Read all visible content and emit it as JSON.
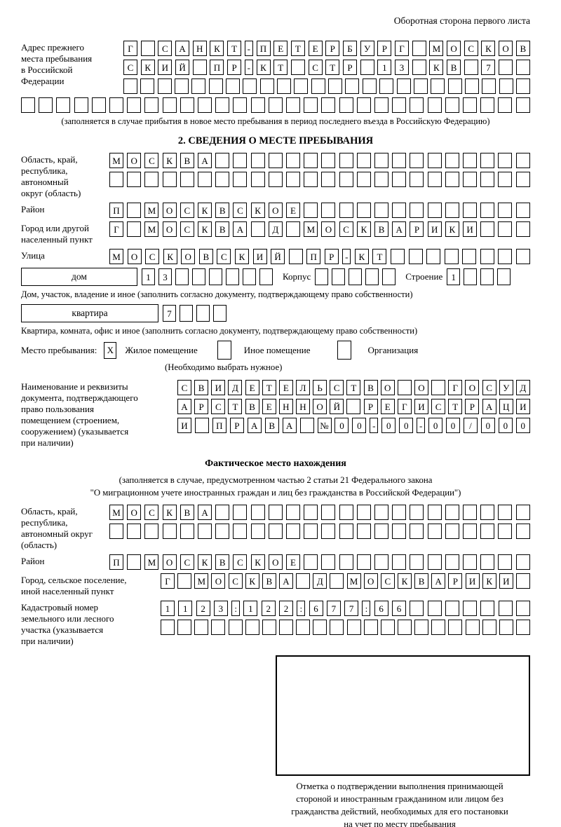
{
  "header": {
    "note": "Оборотная сторона первого листа"
  },
  "prev_address": {
    "label": "Адрес прежнего\nместа пребывания\nв Российской\nФедерации",
    "row1": "Г САНКТ-ПЕТЕРБУРГ МОСКОВ",
    "row2": "СКИЙ ПР-КТ СТР 13 КВ 7",
    "row3": "",
    "row4": "",
    "caption": "(заполняется в случае прибытия в новое место пребывания в период последнего въезда в Российскую Федерацию)"
  },
  "section2": {
    "title": "2. СВЕДЕНИЯ О МЕСТЕ ПРЕБЫВАНИЯ",
    "region_label": "Область, край,\nреспублика,\nавтономный\nокруг (область)",
    "region_row1": "МОСКВА",
    "region_row2": "",
    "district_label": "Район",
    "district_row": "П МОСКВСКОЕ",
    "city_label": "Город или другой\nнаселенный пункт",
    "city_row": "Г МОСКВА Д МОСКВАРИКИ",
    "street_label": "Улица",
    "street_row": "МОСКОВСКИЙ ПР-КТ",
    "house": {
      "type": "дом",
      "digits": "13",
      "korpus_label": "Корпус",
      "korpus_digits": "",
      "stroenie_label": "Строение",
      "stroenie_digits": "1",
      "caption": "Дом, участок, владение и иное (заполнить согласно документу, подтверждающему право собственности)"
    },
    "apartment": {
      "type": "квартира",
      "digits": "7",
      "caption": "Квартира, комната, офис и иное (заполнить согласно документу, подтверждающему право собственности)"
    },
    "stay": {
      "label": "Место пребывания:",
      "opt1_mark": "X",
      "opt1_label": "Жилое помещение",
      "opt2_mark": "",
      "opt2_label": "Иное помещение",
      "opt3_mark": "",
      "opt3_label": "Организация",
      "note": "(Необходимо выбрать нужное)"
    },
    "document": {
      "label": "Наименование и реквизиты\nдокумента, подтверждающего\nправо пользования\nпомещением (строением,\nсооружением) (указывается\nпри наличии)",
      "row1": "СВИДЕТЕЛЬСТВО О ГОСУД",
      "row2": "АРСТВЕННОЙ РЕГИСТРАЦИ",
      "row3": "И ПРАВА №00-00-00/000"
    }
  },
  "actual_location": {
    "title": "Фактическое место нахождения",
    "note1": "(заполняется в случае, предусмотренном частью 2 статьи 21 Федерального закона",
    "note2": "\"О миграционном учете иностранных граждан и лиц без гражданства в Российской Федерации\")",
    "region_label": "Область, край,\nреспублика,\nавтономный округ\n(область)",
    "region_row1": "МОСКВА",
    "region_row2": "",
    "district_label": "Район",
    "district_row": "П МОСКВСКОЕ",
    "city_label": "Город, сельское поселение,\nиной населенный пункт",
    "city_row": "Г МОСКВА Д МОСКВАРИКИ",
    "cadastre_label": "Кадастровый номер\nземельного или лесного\nучастка (указывается\nпри наличии)",
    "cadastre_row1": "1123:122:677:66",
    "cadastre_row2": ""
  },
  "stamp": {
    "caption": "Отметка о подтверждении выполнения принимающей\nстороной и иностранным гражданином или лицом без\nгражданства действий, необходимых для его постановки\nна учет по месту пребывания"
  }
}
